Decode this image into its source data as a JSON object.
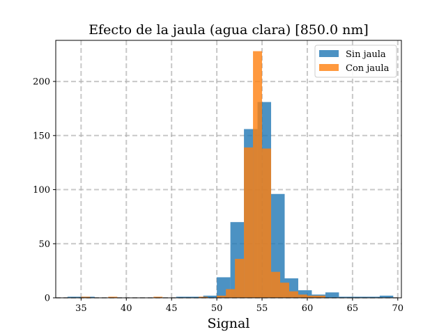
{
  "chart_data": {
    "type": "histogram",
    "title": "Efecto de la jaula (agua clara) [850.0 nm]",
    "xlabel": "Signal",
    "ylabel": "",
    "xlim": [
      32.2,
      70.4
    ],
    "ylim": [
      0,
      238
    ],
    "xticks": [
      35,
      40,
      45,
      50,
      55,
      60,
      65,
      70
    ],
    "yticks": [
      0,
      50,
      100,
      150,
      200
    ],
    "grid": true,
    "grid_style": "dashed",
    "legend_position": "top-right",
    "series": [
      {
        "name": "Sin jaula",
        "color": "#1f77b4",
        "opacity": 0.8,
        "bin_width": 1.5,
        "bins": [
          {
            "x0": 33.5,
            "x1": 35.0,
            "count": 1
          },
          {
            "x0": 35.0,
            "x1": 36.5,
            "count": 1
          },
          {
            "x0": 45.5,
            "x1": 47.0,
            "count": 1
          },
          {
            "x0": 47.0,
            "x1": 48.5,
            "count": 1
          },
          {
            "x0": 48.5,
            "x1": 50.0,
            "count": 2
          },
          {
            "x0": 50.0,
            "x1": 51.5,
            "count": 19
          },
          {
            "x0": 51.5,
            "x1": 53.0,
            "count": 70
          },
          {
            "x0": 53.0,
            "x1": 54.5,
            "count": 156
          },
          {
            "x0": 54.5,
            "x1": 56.0,
            "count": 181
          },
          {
            "x0": 56.0,
            "x1": 57.5,
            "count": 96
          },
          {
            "x0": 57.5,
            "x1": 59.0,
            "count": 18
          },
          {
            "x0": 59.0,
            "x1": 60.5,
            "count": 7
          },
          {
            "x0": 60.5,
            "x1": 62.0,
            "count": 3
          },
          {
            "x0": 62.0,
            "x1": 63.5,
            "count": 5
          },
          {
            "x0": 63.5,
            "x1": 65.0,
            "count": 1
          },
          {
            "x0": 65.0,
            "x1": 66.5,
            "count": 1
          },
          {
            "x0": 66.5,
            "x1": 68.0,
            "count": 1
          },
          {
            "x0": 68.0,
            "x1": 69.5,
            "count": 2
          }
        ]
      },
      {
        "name": "Con jaula",
        "color": "#ff7f0e",
        "opacity": 0.8,
        "bin_width": 1.0,
        "bins": [
          {
            "x0": 35.0,
            "x1": 36.0,
            "count": 1
          },
          {
            "x0": 38.0,
            "x1": 39.0,
            "count": 1
          },
          {
            "x0": 43.0,
            "x1": 44.0,
            "count": 1
          },
          {
            "x0": 48.0,
            "x1": 49.0,
            "count": 1
          },
          {
            "x0": 50.0,
            "x1": 51.0,
            "count": 2
          },
          {
            "x0": 51.0,
            "x1": 52.0,
            "count": 8
          },
          {
            "x0": 52.0,
            "x1": 53.0,
            "count": 36
          },
          {
            "x0": 53.0,
            "x1": 54.0,
            "count": 139
          },
          {
            "x0": 54.0,
            "x1": 55.0,
            "count": 228
          },
          {
            "x0": 55.0,
            "x1": 56.0,
            "count": 138
          },
          {
            "x0": 56.0,
            "x1": 57.0,
            "count": 24
          },
          {
            "x0": 57.0,
            "x1": 58.0,
            "count": 14
          },
          {
            "x0": 58.0,
            "x1": 59.0,
            "count": 6
          },
          {
            "x0": 59.0,
            "x1": 60.0,
            "count": 3
          },
          {
            "x0": 60.0,
            "x1": 61.0,
            "count": 2
          },
          {
            "x0": 61.0,
            "x1": 62.0,
            "count": 2
          }
        ]
      }
    ]
  }
}
